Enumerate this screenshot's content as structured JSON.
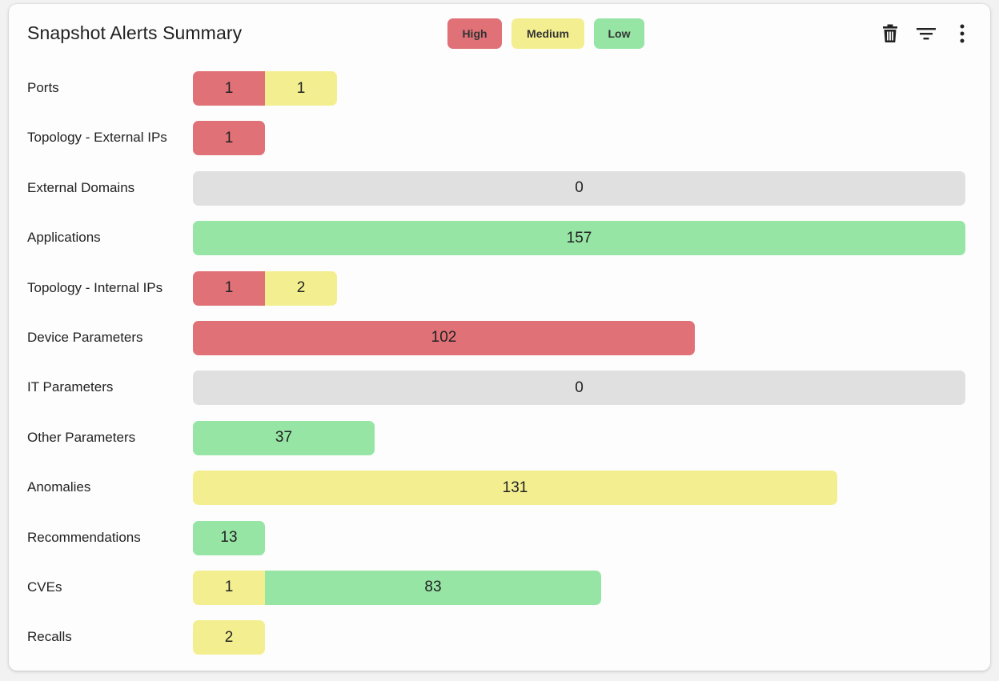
{
  "title": "Snapshot Alerts Summary",
  "legend": [
    {
      "key": "high",
      "label": "High",
      "color": "#df7177"
    },
    {
      "key": "medium",
      "label": "Medium",
      "color": "#f3ef90"
    },
    {
      "key": "low",
      "label": "Low",
      "color": "#96e5a5"
    }
  ],
  "colors": {
    "high": "#df7177",
    "medium": "#f3ef90",
    "low": "#96e5a5",
    "empty": "#e0e0e0"
  },
  "toolbar": {
    "delete_icon": "trash-icon",
    "filter_icon": "filter-icon",
    "more_icon": "more-vert-icon"
  },
  "rows": [
    {
      "label": "Ports",
      "segments": [
        {
          "severity": "high",
          "value": "1"
        },
        {
          "severity": "medium",
          "value": "1"
        }
      ]
    },
    {
      "label": "Topology - External IPs",
      "segments": [
        {
          "severity": "high",
          "value": "1"
        }
      ]
    },
    {
      "label": "External Domains",
      "segments": [
        {
          "severity": "empty",
          "value": "0"
        }
      ]
    },
    {
      "label": "Applications",
      "segments": [
        {
          "severity": "low",
          "value": "157"
        }
      ]
    },
    {
      "label": "Topology - Internal IPs",
      "segments": [
        {
          "severity": "high",
          "value": "1"
        },
        {
          "severity": "medium",
          "value": "2"
        }
      ]
    },
    {
      "label": "Device Parameters",
      "segments": [
        {
          "severity": "high",
          "value": "102"
        }
      ]
    },
    {
      "label": "IT Parameters",
      "segments": [
        {
          "severity": "empty",
          "value": "0"
        }
      ]
    },
    {
      "label": "Other Parameters",
      "segments": [
        {
          "severity": "low",
          "value": "37"
        }
      ]
    },
    {
      "label": "Anomalies",
      "segments": [
        {
          "severity": "medium",
          "value": "131"
        }
      ]
    },
    {
      "label": "Recommendations",
      "segments": [
        {
          "severity": "low",
          "value": "13"
        }
      ]
    },
    {
      "label": "CVEs",
      "segments": [
        {
          "severity": "medium",
          "value": "1"
        },
        {
          "severity": "low",
          "value": "83"
        }
      ]
    },
    {
      "label": "Recalls",
      "segments": [
        {
          "severity": "medium",
          "value": "2"
        }
      ]
    }
  ]
}
